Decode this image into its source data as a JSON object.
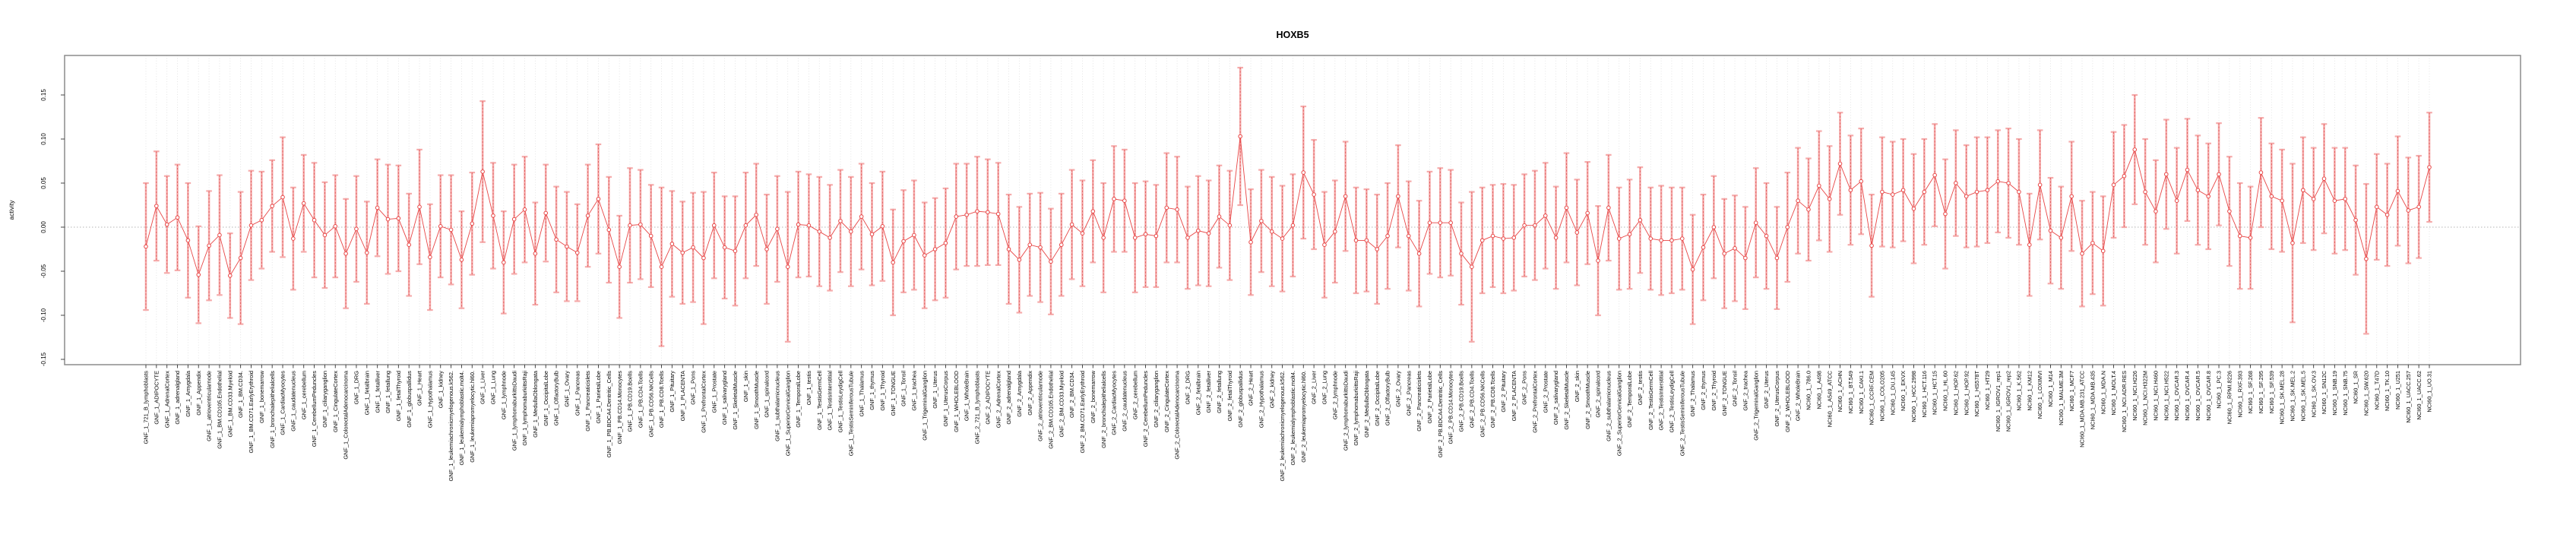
{
  "title": "HOXB5",
  "chart_data": {
    "type": "line",
    "subtype": "points-with-error-bars",
    "title": "HOXB5",
    "xlabel": "",
    "ylabel": "activity",
    "ylim": [
      -0.156,
      0.195
    ],
    "yticks": [
      -0.15,
      -0.1,
      -0.05,
      0.0,
      0.05,
      0.1,
      0.15
    ],
    "grid": {
      "vertical_per_category": true,
      "zero_line": true,
      "style": "dotted"
    },
    "legend_position": "none",
    "colors": {
      "point": "#e84545",
      "line": "#e84545",
      "errorbar_light": "#f5a3a3",
      "errorbar_core": "#e05c5c",
      "frame": "#8c8c8c",
      "gridline": "#dedede",
      "zero_line": "#b4b4b4"
    },
    "categories": [
      "GNF_1_721_B_lymphoblasts",
      "GNF_1_ADIPOCYTE",
      "GNF_1_AdrenalCortex",
      "GNF_1_adrenalgland",
      "GNF_1_Amygdala",
      "GNF_1_Appendix",
      "GNF_1_atrioventricularnode",
      "GNF_1_BM.CD105.Endothelial",
      "GNF_1_BM.CD33.Myeloid",
      "GNF_1_BM.CD34.",
      "GNF_1_BM.CD71.EarlyErythroid",
      "GNF_1_bonemarrow",
      "GNF_1_bronchialepithelialcells",
      "GNF_1_CardiacMyocytes",
      "GNF_1_caudatenucleus",
      "GNF_1_cerebellum",
      "GNF_1_CerebellumPeduncles",
      "GNF_1_ciliaryganglion",
      "GNF_1_CingulateCortex",
      "GNF_1_ColorectalAdenocarcinoma",
      "GNF_1_DRG",
      "GNF_1_fetalbrain",
      "GNF_1_fetalliver",
      "GNF_1_fetallung",
      "GNF_1_fetalThyroid",
      "GNF_1_globuspallidus",
      "GNF_1_Heart",
      "GNF_1_Hypothalamus",
      "GNF_1_kidney",
      "GNF_1_leukemiachronicmyelogenous.k562.",
      "GNF_1_leukemialymphoblastic.molt4.",
      "GNF_1_leukemiapromyelocytic.hl60.",
      "GNF_1_Liver",
      "GNF_1_Lung",
      "GNF_1_lymphnode",
      "GNF_1_lymphomaburkittsDaudi",
      "GNF_1_lymphomaburkittsRaji",
      "GNF_1_MedullaOblongata",
      "GNF_1_OccipitalLobe",
      "GNF_1_OlfactoryBulb",
      "GNF_1_Ovary",
      "GNF_1_Pancreas",
      "GNF_1_Pancreaticislets",
      "GNF_1_ParietalLobe",
      "GNF_1_PB.BDCA4.Dentritic_Cells",
      "GNF_1_PB.CD14.Monocytes",
      "GNF_1_PB.CD19.Bcells",
      "GNF_1_PB.CD4.Tcells",
      "GNF_1_PB.CD56.NKCells",
      "GNF_1_PB.CD8.Tcells",
      "GNF_1_Pituitary",
      "GNF_1_PLACENTA",
      "GNF_1_Pons",
      "GNF_1_PrefrontalCortex",
      "GNF_1_Prostate",
      "GNF_1_salivarygland",
      "GNF_1_SkeletalMuscle",
      "GNF_1_skin",
      "GNF_1_SmoothMuscle",
      "GNF_1_spinalcord",
      "GNF_1_subthalamicnucleus",
      "GNF_1_SuperiorCervicalGanglion",
      "GNF_1_TemporalLobe",
      "GNF_1_testis",
      "GNF_1_TestisGermCell",
      "GNF_1_TestisInterstitial",
      "GNF_1_TestisLeydigCell",
      "GNF_1_TestisSeminiferousTubule",
      "GNF_1_Thalamus",
      "GNF_1_thymus",
      "GNF_1_Thyroid",
      "GNF_1_TONGUE",
      "GNF_1_Tonsil",
      "GNF_1_trachea",
      "GNF_1_TrigeminalGanglion",
      "GNF_1_Uterus",
      "GNF_1_UterusCorpus",
      "GNF_1_WHOLEBLOOD",
      "GNF_1_WholeBrain",
      "GNF_2_721_B_lymphoblasts",
      "GNF_2_ADIPOCYTE",
      "GNF_2_AdrenalCortex",
      "GNF_2_adrenalgland",
      "GNF_2_Amygdala",
      "GNF_2_Appendix",
      "GNF_2_atrioventricularnode",
      "GNF_2_BM.CD105.Endothelial",
      "GNF_2_BM.CD33.Myeloid",
      "GNF_2_BM.CD34.",
      "GNF_2_BM.CD71.EarlyErythroid",
      "GNF_2_bonemarrow",
      "GNF_2_bronchialepithelialcells",
      "GNF_2_CardiacMyocytes",
      "GNF_2_caudatenucleus",
      "GNF_2_cerebellum",
      "GNF_2_CerebellumPeduncles",
      "GNF_2_ciliaryganglion",
      "GNF_2_CingulateCortex",
      "GNF_2_ColorectalAdenocarcinoma",
      "GNF_2_DRG",
      "GNF_2_fetalbrain",
      "GNF_2_fetalliver",
      "GNF_2_fetallung",
      "GNF_2_fetalThyroid",
      "GNF_2_globuspallidus",
      "GNF_2_Heart",
      "GNF_2_Hypothalamus",
      "GNF_2_kidney",
      "GNF_2_leukemiachronicmyelogenous.k562.",
      "GNF_2_leukemialymphoblastic.molt4.",
      "GNF_2_leukemiapromyelocytic.hl60.",
      "GNF_2_Liver",
      "GNF_2_Lung",
      "GNF_2_lymphnode",
      "GNF_2_lymphomaburkittsDaudi",
      "GNF_2_lymphomaburkittsRaji",
      "GNF_2_MedullaOblongata",
      "GNF_2_OccipitalLobe",
      "GNF_2_OlfactoryBulb",
      "GNF_2_Ovary",
      "GNF_2_Pancreas",
      "GNF_2_Pancreaticislets",
      "GNF_2_ParietalLobe",
      "GNF_2_PB.BDCA4.Dentritic_Cells",
      "GNF_2_PB.CD14.Monocytes",
      "GNF_2_PB.CD19.Bcells",
      "GNF_2_PB.CD4.Tcells",
      "GNF_2_PB.CD56.NKCells",
      "GNF_2_PB.CD8.Tcells",
      "GNF_2_Pituitary",
      "GNF_2_PLACENTA",
      "GNF_2_Pons",
      "GNF_2_PrefrontalCortex",
      "GNF_2_Prostate",
      "GNF_2_salivarygland",
      "GNF_2_SkeletalMuscle",
      "GNF_2_skin",
      "GNF_2_SmoothMuscle",
      "GNF_2_spinalcord",
      "GNF_2_subthalamicnucleus",
      "GNF_2_SuperiorCervicalGanglion",
      "GNF_2_TemporalLobe",
      "GNF_2_testis",
      "GNF_2_TestisGermCell",
      "GNF_2_TestisInterstitial",
      "GNF_2_TestisLeydigCell",
      "GNF_2_TestisSeminiferousTubule",
      "GNF_2_Thalamus",
      "GNF_2_thymus",
      "GNF_2_Thyroid",
      "GNF_2_TONGUE",
      "GNF_2_Tonsil",
      "GNF_2_trachea",
      "GNF_2_TrigeminalGanglion",
      "GNF_2_Uterus",
      "GNF_2_UterusCorpus",
      "GNF_2_WHOLEBLOOD",
      "GNF_2_WholeBrain",
      "NCI60_1_786.0",
      "NCI60_1_A498",
      "NCI60_1_A549_ATCC",
      "NCI60_1_ACHN",
      "NCI60_1_BT.549",
      "NCI60_1_CAKI.1",
      "NCI60_1_CCRF.CEM",
      "NCI60_1_COLO205",
      "NCI60_1_DU.145",
      "NCI60_1_EKVX",
      "NCI60_1_HCC.2998",
      "NCI60_1_HCT.116",
      "NCI60_1_HCT.15",
      "NCI60_1_HL.60",
      "NCI60_1_HOP.62",
      "NCI60_1_HOP.92",
      "NCI60_1_HS578T",
      "NCI60_1_HT29",
      "NCI60_1_IGROV1_rep1",
      "NCI60_1_IGROV1_rep2",
      "NCI60_1_K.562",
      "NCI60_1_KM12",
      "NCI60_1_LOXIMVI",
      "NCI60_1_M14",
      "NCI60_1_MALME.3M",
      "NCI60_1_MCF7",
      "NCI60_1_MDA.MB.231_ATCC",
      "NCI60_1_MDA.MB.435",
      "NCI60_1_MDA.N",
      "NCI60_1_MOLT.4",
      "NCI60_1_NCI.ADR.RES",
      "NCI60_1_NCI.H226",
      "NCI60_1_NCI.H322M",
      "NCI60_1_NCI.H460",
      "NCI60_1_NCI.H522",
      "NCI60_1_OVCAR.3",
      "NCI60_1_OVCAR.4",
      "NCI60_1_OVCAR.5",
      "NCI60_1_OVCAR.8",
      "NCI60_1_PC.3",
      "NCI60_1_RPMI.8226",
      "NCI60_1_RXF.393",
      "NCI60_1_SF.268",
      "NCI60_1_SF.295",
      "NCI60_1_SF.539",
      "NCI60_1_SK.MEL.28",
      "NCI60_1_SK.MEL.2",
      "NCI60_1_SK.MEL.5",
      "NCI60_1_SK.OV.3",
      "NCI60_1_SN12C",
      "NCI60_1_SNB.19",
      "NCI60_1_SNB.75",
      "NCI60_1_SR",
      "NCI60_1_SW.620",
      "NCI60_1_T47D",
      "NCI60_1_TK.10",
      "NCI60_1_U251",
      "NCI60_1_UACC.257",
      "NCI60_1_UACC.62",
      "NCI60_1_UO.31"
    ],
    "values": [
      -0.022,
      0.024,
      0.003,
      0.011,
      -0.015,
      -0.054,
      -0.021,
      -0.009,
      -0.055,
      -0.035,
      0.002,
      0.008,
      0.024,
      0.034,
      -0.013,
      0.027,
      0.008,
      -0.009,
      0.001,
      -0.03,
      -0.002,
      -0.029,
      0.022,
      0.009,
      0.01,
      -0.02,
      0.023,
      -0.034,
      0.001,
      -0.003,
      -0.037,
      0.004,
      0.063,
      0.013,
      -0.04,
      0.009,
      0.02,
      -0.03,
      0.016,
      -0.014,
      -0.022,
      -0.029,
      0.013,
      0.032,
      -0.003,
      -0.045,
      0.002,
      0.003,
      -0.01,
      -0.045,
      -0.019,
      -0.029,
      -0.023,
      -0.035,
      0.002,
      -0.023,
      -0.027,
      0.002,
      0.014,
      -0.025,
      -0.002,
      -0.045,
      0.003,
      0.002,
      -0.005,
      -0.012,
      0.007,
      -0.005,
      0.012,
      -0.008,
      0.001,
      -0.04,
      -0.016,
      -0.009,
      -0.032,
      -0.025,
      -0.018,
      0.012,
      0.014,
      0.018,
      0.017,
      0.015,
      -0.025,
      -0.037,
      -0.02,
      -0.023,
      -0.039,
      -0.02,
      0.003,
      -0.007,
      0.018,
      -0.012,
      0.032,
      0.03,
      -0.012,
      -0.008,
      -0.01,
      0.022,
      0.02,
      -0.012,
      -0.004,
      -0.007,
      0.012,
      0.002,
      0.103,
      -0.017,
      0.007,
      -0.005,
      -0.013,
      0.002,
      0.062,
      0.037,
      -0.02,
      -0.005,
      0.035,
      -0.015,
      -0.015,
      -0.025,
      -0.01,
      0.035,
      -0.01,
      -0.03,
      0.005,
      0.005,
      0.005,
      -0.03,
      -0.045,
      -0.015,
      -0.01,
      -0.013,
      -0.012,
      0.002,
      0.002,
      0.013,
      -0.012,
      0.022,
      -0.006,
      0.016,
      -0.038,
      0.022,
      -0.013,
      -0.008,
      0.008,
      -0.013,
      -0.015,
      -0.015,
      -0.013,
      -0.048,
      -0.023,
      0.0,
      -0.03,
      -0.024,
      -0.035,
      0.005,
      -0.01,
      -0.035,
      0.0,
      0.03,
      0.02,
      0.047,
      0.032,
      0.072,
      0.042,
      0.052,
      -0.021,
      0.04,
      0.037,
      0.042,
      0.021,
      0.04,
      0.059,
      0.015,
      0.05,
      0.035,
      0.04,
      0.042,
      0.052,
      0.05,
      0.04,
      -0.02,
      0.048,
      -0.004,
      -0.012,
      0.035,
      -0.03,
      -0.018,
      -0.027,
      0.048,
      0.058,
      0.088,
      0.04,
      0.018,
      0.06,
      0.03,
      0.065,
      0.042,
      0.035,
      0.06,
      0.018,
      -0.01,
      -0.012,
      0.062,
      0.035,
      0.03,
      -0.018,
      0.042,
      0.032,
      0.055,
      0.03,
      0.032,
      0.008,
      -0.036,
      0.023,
      0.014,
      0.041,
      0.019,
      0.023,
      0.068
    ],
    "errors": [
      0.072,
      0.062,
      0.055,
      0.06,
      0.065,
      0.055,
      0.062,
      0.068,
      0.048,
      0.075,
      0.062,
      0.055,
      0.052,
      0.068,
      0.058,
      0.055,
      0.065,
      0.06,
      0.058,
      0.062,
      0.06,
      0.058,
      0.055,
      0.062,
      0.06,
      0.058,
      0.065,
      0.06,
      0.058,
      0.062,
      0.055,
      0.058,
      0.08,
      0.06,
      0.058,
      0.062,
      0.06,
      0.058,
      0.055,
      0.06,
      0.062,
      0.055,
      0.058,
      0.062,
      0.06,
      0.058,
      0.065,
      0.062,
      0.058,
      0.09,
      0.06,
      0.058,
      0.062,
      0.075,
      0.06,
      0.058,
      0.062,
      0.06,
      0.058,
      0.062,
      0.06,
      0.085,
      0.06,
      0.058,
      0.062,
      0.06,
      0.058,
      0.062,
      0.06,
      0.058,
      0.062,
      0.06,
      0.058,
      0.062,
      0.06,
      0.058,
      0.062,
      0.06,
      0.058,
      0.062,
      0.06,
      0.058,
      0.062,
      0.06,
      0.058,
      0.062,
      0.06,
      0.058,
      0.062,
      0.06,
      0.058,
      0.062,
      0.06,
      0.058,
      0.062,
      0.06,
      0.058,
      0.062,
      0.06,
      0.058,
      0.062,
      0.06,
      0.058,
      0.062,
      0.078,
      0.06,
      0.058,
      0.062,
      0.06,
      0.058,
      0.075,
      0.062,
      0.06,
      0.058,
      0.062,
      0.06,
      0.058,
      0.062,
      0.06,
      0.058,
      0.062,
      0.06,
      0.058,
      0.062,
      0.06,
      0.058,
      0.085,
      0.06,
      0.058,
      0.062,
      0.06,
      0.058,
      0.062,
      0.06,
      0.058,
      0.062,
      0.06,
      0.058,
      0.062,
      0.06,
      0.058,
      0.062,
      0.06,
      0.058,
      0.062,
      0.06,
      0.058,
      0.062,
      0.06,
      0.058,
      0.062,
      0.06,
      0.058,
      0.062,
      0.06,
      0.058,
      0.062,
      0.06,
      0.058,
      0.062,
      0.06,
      0.058,
      0.062,
      0.06,
      0.058,
      0.062,
      0.06,
      0.058,
      0.062,
      0.06,
      0.058,
      0.062,
      0.06,
      0.058,
      0.062,
      0.06,
      0.058,
      0.062,
      0.06,
      0.058,
      0.062,
      0.06,
      0.058,
      0.062,
      0.06,
      0.058,
      0.062,
      0.06,
      0.058,
      0.062,
      0.06,
      0.058,
      0.062,
      0.06,
      0.058,
      0.062,
      0.06,
      0.058,
      0.062,
      0.06,
      0.058,
      0.062,
      0.06,
      0.058,
      0.09,
      0.06,
      0.058,
      0.062,
      0.06,
      0.058,
      0.062,
      0.085,
      0.06,
      0.058,
      0.062,
      0.06,
      0.058,
      0.062
    ]
  }
}
